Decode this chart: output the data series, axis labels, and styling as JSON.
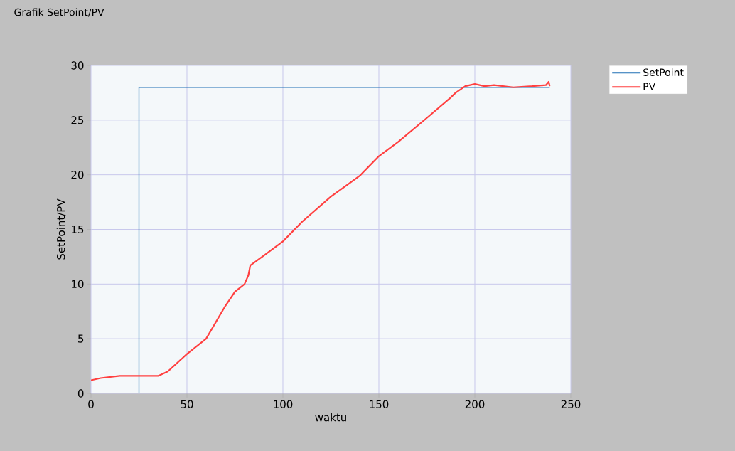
{
  "chart_data": {
    "type": "line",
    "title": "Grafik SetPoint/PV",
    "xlabel": "waktu",
    "ylabel": "SetPoint/PV",
    "xlim": [
      0,
      250
    ],
    "ylim": [
      0,
      30
    ],
    "xticks": [
      0,
      50,
      100,
      150,
      200,
      250
    ],
    "yticks": [
      0,
      5,
      10,
      15,
      20,
      25,
      30
    ],
    "grid": true,
    "legend": "top right",
    "series": [
      {
        "name": "SetPoint",
        "color": "#1f6fb4",
        "x": [
          0,
          25,
          25,
          239
        ],
        "values": [
          0,
          0,
          28,
          28
        ]
      },
      {
        "name": "PV",
        "color": "#ff4040",
        "x": [
          0,
          5,
          10,
          15,
          25,
          35,
          40,
          45,
          50,
          60,
          70,
          75,
          80,
          82,
          83,
          90,
          100,
          110,
          125,
          140,
          150,
          160,
          175,
          187,
          190,
          195,
          200,
          205,
          210,
          220,
          230,
          237,
          238.5,
          239
        ],
        "values": [
          1.2,
          1.4,
          1.5,
          1.6,
          1.6,
          1.6,
          2.0,
          2.8,
          3.6,
          5.0,
          8.0,
          9.3,
          10.0,
          10.8,
          11.7,
          12.6,
          13.9,
          15.7,
          18.0,
          19.9,
          21.7,
          23.0,
          25.2,
          27.0,
          27.5,
          28.1,
          28.3,
          28.1,
          28.2,
          28.0,
          28.1,
          28.2,
          28.5,
          28.1
        ]
      }
    ]
  }
}
